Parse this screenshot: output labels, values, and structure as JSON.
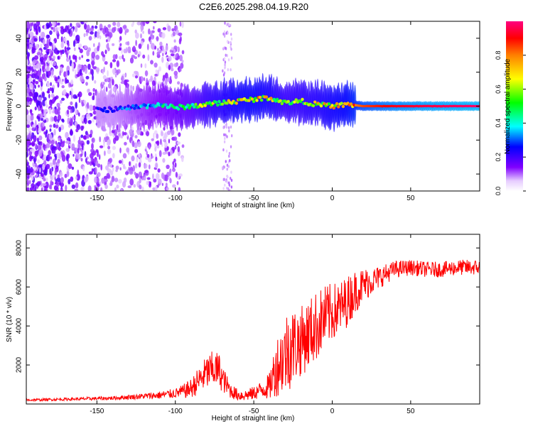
{
  "title": "C2E6.2025.298.04.19.R20",
  "colors": {
    "trace": "#ff0000",
    "axis": "#000000"
  },
  "chart_data": [
    {
      "type": "heatmap",
      "name": "spectrogram",
      "xlabel": "Height of straight line (km)",
      "ylabel": "Frequency (Hz)",
      "xlim": [
        -195,
        94
      ],
      "ylim": [
        -50,
        50
      ],
      "xticks": [
        -150,
        -100,
        -50,
        0,
        50
      ],
      "yticks": [
        -40,
        -20,
        0,
        20,
        40
      ],
      "colorbar": {
        "label": "Normalized spectral amplitude",
        "range": [
          0,
          1
        ],
        "ticks": [
          "0.0",
          "0.2",
          "0.4",
          "0.6",
          "0.8"
        ]
      },
      "ridge": {
        "x": [
          -140,
          -130,
          -120,
          -110,
          -100,
          -90,
          -80,
          -70,
          -60,
          -50,
          -40,
          -30,
          -20,
          -10,
          0,
          10,
          20,
          40,
          60,
          80,
          94
        ],
        "y": [
          -2,
          -1,
          0,
          1,
          -1,
          0,
          1,
          2,
          3,
          4,
          5,
          2,
          3,
          1,
          0,
          1,
          0,
          0,
          0,
          0,
          0
        ],
        "amplitude": [
          0.25,
          0.3,
          0.35,
          0.4,
          0.45,
          0.5,
          0.6,
          0.65,
          0.7,
          0.72,
          0.68,
          0.6,
          0.62,
          0.65,
          0.7,
          0.75,
          0.85,
          0.92,
          0.95,
          0.97,
          0.98
        ]
      }
    },
    {
      "type": "line",
      "name": "snr",
      "xlabel": "Height of straight line (km)",
      "ylabel": "SNR (10 * v/v)",
      "xlim": [
        -195,
        94
      ],
      "ylim": [
        0,
        8700
      ],
      "xticks": [
        -150,
        -100,
        -50,
        0,
        50
      ],
      "yticks": [
        2000,
        4000,
        6000,
        8000
      ],
      "series": [
        {
          "name": "SNR",
          "x": [
            -195,
            -180,
            -160,
            -140,
            -120,
            -110,
            -100,
            -95,
            -90,
            -85,
            -80,
            -75,
            -72,
            -70,
            -65,
            -60,
            -55,
            -50,
            -45,
            -40,
            -38,
            -35,
            -30,
            -28,
            -25,
            -20,
            -15,
            -10,
            -5,
            0,
            5,
            10,
            15,
            20,
            25,
            30,
            35,
            40,
            50,
            60,
            70,
            80,
            94
          ],
          "y": [
            200,
            230,
            260,
            300,
            400,
            450,
            550,
            650,
            800,
            1200,
            1600,
            1800,
            1700,
            1300,
            700,
            450,
            450,
            550,
            750,
            900,
            1400,
            2000,
            2500,
            2900,
            3000,
            3200,
            3600,
            4000,
            4400,
            4700,
            4900,
            5300,
            5800,
            6100,
            6300,
            6500,
            6700,
            6900,
            7000,
            6900,
            6900,
            7000,
            7000
          ],
          "noise": [
            60,
            70,
            80,
            100,
            150,
            200,
            250,
            350,
            500,
            700,
            900,
            1000,
            900,
            700,
            400,
            300,
            300,
            350,
            450,
            700,
            1100,
            1600,
            2000,
            2300,
            2000,
            1800,
            1800,
            1800,
            1700,
            1500,
            1400,
            1300,
            1100,
            900,
            700,
            600,
            500,
            450,
            400,
            400,
            400,
            400,
            400
          ]
        }
      ]
    }
  ]
}
